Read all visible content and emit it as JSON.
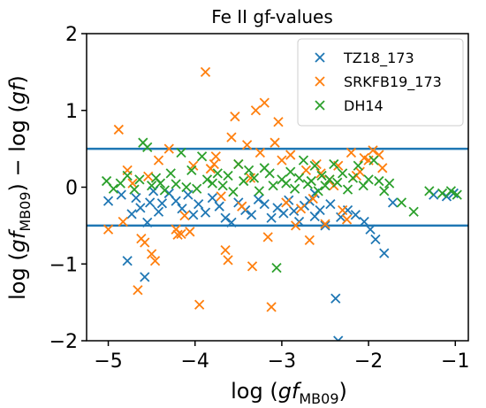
{
  "chart_data": {
    "type": "scatter",
    "title": "Fe II gf-values",
    "xlabel": {
      "prefix": "log (",
      "var": "gf",
      "sub": "MB09",
      "suffix": ")"
    },
    "ylabel": {
      "part1": "log (",
      "var1": "gf",
      "sub1": "MB09",
      "part2": ") − log (",
      "var2": "gf",
      "part3": ")"
    },
    "xlim": [
      -5.25,
      -0.85
    ],
    "ylim": [
      -2,
      2
    ],
    "x_ticks": [
      -5,
      -4,
      -3,
      -2,
      -1
    ],
    "y_ticks": [
      -2,
      -1,
      0,
      1,
      2
    ],
    "x_tick_labels": [
      "−5",
      "−4",
      "−3",
      "−2",
      "−1"
    ],
    "y_tick_labels": [
      "−2",
      "−1",
      "0",
      "1",
      "2"
    ],
    "grid": false,
    "legend_position": "top-right",
    "reference_lines": [
      {
        "y": 0.5,
        "color": "#1f77b4"
      },
      {
        "y": -0.5,
        "color": "#1f77b4"
      }
    ],
    "series": [
      {
        "name": "TZ18_173",
        "color": "#1f77b4",
        "marker": "x",
        "points": [
          [
            -5.0,
            -0.18
          ],
          [
            -4.85,
            -0.1
          ],
          [
            -4.78,
            -0.96
          ],
          [
            -4.73,
            -0.35
          ],
          [
            -4.68,
            -0.14
          ],
          [
            -4.63,
            -0.27
          ],
          [
            -4.58,
            -1.17
          ],
          [
            -4.55,
            -0.46
          ],
          [
            -4.52,
            -0.2
          ],
          [
            -4.48,
            -0.05
          ],
          [
            -4.42,
            -0.32
          ],
          [
            -4.38,
            -0.21
          ],
          [
            -4.3,
            -0.08
          ],
          [
            -4.22,
            -0.18
          ],
          [
            -4.15,
            -0.28
          ],
          [
            -4.08,
            -0.1
          ],
          [
            -4.02,
            -0.36
          ],
          [
            -3.96,
            -0.22
          ],
          [
            -3.88,
            -0.33
          ],
          [
            -3.8,
            -0.14
          ],
          [
            -3.72,
            -0.25
          ],
          [
            -3.65,
            -0.4
          ],
          [
            -3.58,
            -0.46
          ],
          [
            -3.5,
            -0.2
          ],
          [
            -3.42,
            -0.3
          ],
          [
            -3.35,
            -0.36
          ],
          [
            -3.27,
            -0.16
          ],
          [
            -3.2,
            -0.22
          ],
          [
            -3.12,
            -0.4
          ],
          [
            -3.05,
            -0.27
          ],
          [
            -2.98,
            -0.34
          ],
          [
            -2.92,
            -0.17
          ],
          [
            -2.86,
            -0.31
          ],
          [
            -2.8,
            -0.45
          ],
          [
            -2.74,
            -0.24
          ],
          [
            -2.68,
            -0.18
          ],
          [
            -2.62,
            -0.38
          ],
          [
            -2.56,
            -0.3
          ],
          [
            -2.5,
            -0.5
          ],
          [
            -2.44,
            -0.22
          ],
          [
            -2.38,
            -1.45
          ],
          [
            -2.32,
            -0.39
          ],
          [
            -2.24,
            -0.3
          ],
          [
            -2.15,
            -0.36
          ],
          [
            -2.05,
            -0.45
          ],
          [
            -1.98,
            -0.55
          ],
          [
            -1.92,
            -0.68
          ],
          [
            -1.82,
            -0.86
          ],
          [
            -1.72,
            -0.2
          ],
          [
            -1.25,
            -0.1
          ],
          [
            -1.1,
            -0.12
          ],
          [
            -1.02,
            -0.08
          ],
          [
            -2.35,
            -2.0
          ],
          [
            -2.62,
            -0.08
          ]
        ]
      },
      {
        "name": "SRKFB19_173",
        "color": "#ff7f0e",
        "marker": "x",
        "points": [
          [
            -5.0,
            -0.55
          ],
          [
            -4.88,
            0.75
          ],
          [
            -4.83,
            -0.45
          ],
          [
            -4.78,
            0.22
          ],
          [
            -4.72,
            0.05
          ],
          [
            -4.66,
            -1.34
          ],
          [
            -4.62,
            -0.67
          ],
          [
            -4.58,
            -0.72
          ],
          [
            -4.54,
            0.14
          ],
          [
            -4.5,
            -0.87
          ],
          [
            -4.46,
            -0.96
          ],
          [
            -4.42,
            0.35
          ],
          [
            -4.3,
            0.5
          ],
          [
            -4.22,
            -0.55
          ],
          [
            -4.16,
            -0.61
          ],
          [
            -4.12,
            -0.37
          ],
          [
            -4.06,
            -0.58
          ],
          [
            -4.02,
            0.28
          ],
          [
            -3.95,
            -1.53
          ],
          [
            -3.88,
            1.5
          ],
          [
            -3.82,
            0.24
          ],
          [
            -3.76,
            0.4
          ],
          [
            -3.7,
            -0.12
          ],
          [
            -3.65,
            -0.82
          ],
          [
            -3.62,
            -0.95
          ],
          [
            -3.58,
            0.65
          ],
          [
            -3.54,
            0.92
          ],
          [
            -3.5,
            0.3
          ],
          [
            -3.46,
            -0.25
          ],
          [
            -3.4,
            0.55
          ],
          [
            -3.34,
            -1.03
          ],
          [
            -3.3,
            1.0
          ],
          [
            -3.25,
            0.45
          ],
          [
            -3.2,
            1.1
          ],
          [
            -3.16,
            -0.65
          ],
          [
            -3.12,
            -1.56
          ],
          [
            -3.08,
            0.58
          ],
          [
            -3.04,
            0.85
          ],
          [
            -3.0,
            0.35
          ],
          [
            -2.95,
            -0.2
          ],
          [
            -2.9,
            0.42
          ],
          [
            -2.84,
            -0.5
          ],
          [
            -2.78,
            -0.28
          ],
          [
            -2.72,
            0.22
          ],
          [
            -2.68,
            -0.69
          ],
          [
            -2.64,
            -0.15
          ],
          [
            -2.6,
            0.3
          ],
          [
            -2.55,
            0.18
          ],
          [
            -2.5,
            -0.48
          ],
          [
            -2.45,
            0.1
          ],
          [
            -2.4,
            0.02
          ],
          [
            -2.35,
            0.28
          ],
          [
            -2.3,
            -0.3
          ],
          [
            -2.25,
            -0.42
          ],
          [
            -2.2,
            0.45
          ],
          [
            -2.14,
            0.15
          ],
          [
            -2.1,
            0.2
          ],
          [
            -2.05,
            0.38
          ],
          [
            -2.0,
            0.35
          ],
          [
            -1.95,
            0.48
          ],
          [
            -1.88,
            0.42
          ],
          [
            -1.84,
            0.25
          ],
          [
            -4.2,
            -0.62
          ],
          [
            -3.78,
            0.3
          ],
          [
            -3.36,
            0.12
          ]
        ]
      },
      {
        "name": "DH14",
        "color": "#2ca02c",
        "marker": "x",
        "points": [
          [
            -5.02,
            0.08
          ],
          [
            -4.94,
            -0.02
          ],
          [
            -4.86,
            0.05
          ],
          [
            -4.78,
            0.15
          ],
          [
            -4.7,
            -0.03
          ],
          [
            -4.64,
            0.1
          ],
          [
            -4.6,
            0.58
          ],
          [
            -4.55,
            0.52
          ],
          [
            -4.5,
            0.02
          ],
          [
            -4.45,
            0.12
          ],
          [
            -4.4,
            0.05
          ],
          [
            -4.35,
            -0.04
          ],
          [
            -4.28,
            0.18
          ],
          [
            -4.22,
            0.04
          ],
          [
            -4.16,
            0.45
          ],
          [
            -4.1,
            0.0
          ],
          [
            -4.04,
            0.22
          ],
          [
            -3.98,
            -0.02
          ],
          [
            -3.92,
            0.4
          ],
          [
            -3.86,
            0.1
          ],
          [
            -3.8,
            0.05
          ],
          [
            -3.74,
            0.18
          ],
          [
            -3.68,
            0.02
          ],
          [
            -3.62,
            0.15
          ],
          [
            -3.56,
            -0.06
          ],
          [
            -3.5,
            0.3
          ],
          [
            -3.44,
            0.08
          ],
          [
            -3.38,
            0.22
          ],
          [
            -3.32,
            0.12
          ],
          [
            -3.26,
            -0.05
          ],
          [
            -3.2,
            0.25
          ],
          [
            -3.14,
            0.18
          ],
          [
            -3.1,
            0.02
          ],
          [
            -3.06,
            -1.05
          ],
          [
            -3.0,
            0.1
          ],
          [
            -2.95,
            0.05
          ],
          [
            -2.9,
            0.2
          ],
          [
            -2.85,
            -0.02
          ],
          [
            -2.8,
            0.12
          ],
          [
            -2.75,
            0.35
          ],
          [
            -2.7,
            0.04
          ],
          [
            -2.66,
            0.08
          ],
          [
            -2.62,
            0.28
          ],
          [
            -2.58,
            -0.05
          ],
          [
            -2.54,
            0.15
          ],
          [
            -2.5,
            0.02
          ],
          [
            -2.45,
            0.1
          ],
          [
            -2.4,
            0.3
          ],
          [
            -2.36,
            0.06
          ],
          [
            -2.3,
            0.18
          ],
          [
            -2.24,
            -0.03
          ],
          [
            -2.18,
            0.12
          ],
          [
            -2.12,
            0.28
          ],
          [
            -2.06,
            0.02
          ],
          [
            -2.0,
            0.1
          ],
          [
            -1.94,
            0.35
          ],
          [
            -1.88,
            0.08
          ],
          [
            -1.82,
            -0.05
          ],
          [
            -1.76,
            0.05
          ],
          [
            -1.62,
            -0.2
          ],
          [
            -1.48,
            -0.32
          ],
          [
            -1.3,
            -0.05
          ],
          [
            -1.15,
            -0.08
          ],
          [
            -1.05,
            -0.05
          ],
          [
            -0.98,
            -0.1
          ]
        ]
      }
    ]
  }
}
